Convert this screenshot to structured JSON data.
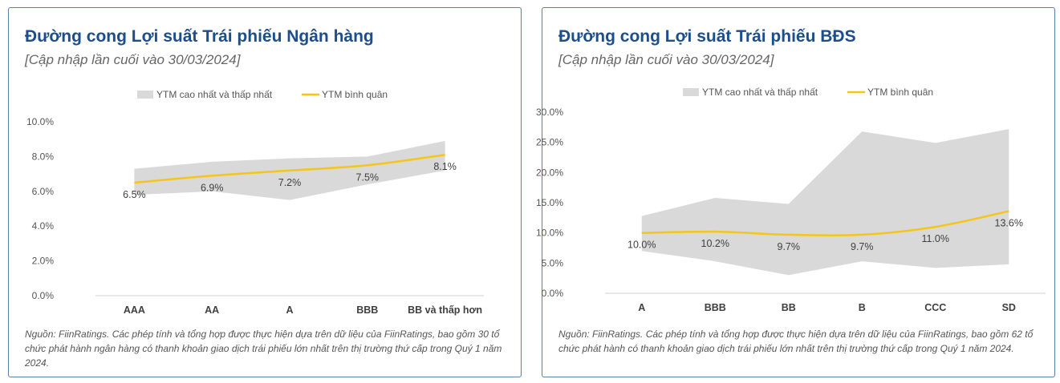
{
  "charts": [
    {
      "title": "Đường cong Lợi suất Trái phiếu Ngân hàng",
      "subtitle": "[Cập nhập lần cuối vào 30/03/2024]",
      "legend": {
        "range_label": "YTM cao nhất và thấp nhất",
        "avg_label": "YTM bình quân"
      },
      "footnote": "Nguồn: FiinRatings. Các phép tính và tổng hợp được thực hiện dựa trên dữ liệu của FiinRatings, bao gồm 30 tổ chức phát hành ngân hàng có thanh khoản giao dịch trái phiếu lớn nhất trên thị trường thứ cấp trong Quý 1 năm 2024."
    },
    {
      "title": "Đường cong Lợi suất Trái phiếu BĐS",
      "subtitle": "[Cập nhập lần cuối vào 30/03/2024]",
      "legend": {
        "range_label": "YTM cao nhất và thấp nhất",
        "avg_label": "YTM bình quân"
      },
      "footnote": "Nguồn: FiinRatings. Các phép tính và tổng hợp được thực hiện dựa trên dữ liệu của FiinRatings, bao gồm 62 tổ chức phát hành có thanh khoản giao dịch trái phiếu lớn nhất trên thị trường thứ cấp trong Quý 1 năm 2024."
    }
  ],
  "chart_data": [
    {
      "type": "area",
      "categories": [
        "AAA",
        "AA",
        "A",
        "BBB",
        "BB và thấp hơn"
      ],
      "series": [
        {
          "name": "YTM cao nhất và thấp nhất",
          "high": [
            7.3,
            7.7,
            7.9,
            8.0,
            8.9
          ],
          "low": [
            5.8,
            6.0,
            5.5,
            6.4,
            7.2
          ]
        },
        {
          "name": "YTM bình quân",
          "values": [
            6.5,
            6.9,
            7.2,
            7.5,
            8.1
          ]
        }
      ],
      "data_labels": [
        "6.5%",
        "6.9%",
        "7.2%",
        "7.5%",
        "8.1%"
      ],
      "y_ticks": [
        "0.0%",
        "2.0%",
        "4.0%",
        "6.0%",
        "8.0%",
        "10.0%"
      ],
      "ylim": [
        0,
        10
      ],
      "legend_position": "top",
      "colors": {
        "range": "#d9d9d9",
        "line": "#f5c518"
      }
    },
    {
      "type": "area",
      "categories": [
        "A",
        "BBB",
        "BB",
        "B",
        "CCC",
        "SD"
      ],
      "series": [
        {
          "name": "YTM cao nhất và thấp nhất",
          "high": [
            12.8,
            15.8,
            14.8,
            26.8,
            24.9,
            27.2
          ],
          "low": [
            7.0,
            5.3,
            3.0,
            5.3,
            4.2,
            4.8
          ]
        },
        {
          "name": "YTM bình quân",
          "values": [
            10.0,
            10.2,
            9.7,
            9.7,
            11.0,
            13.6
          ]
        }
      ],
      "data_labels": [
        "10.0%",
        "10.2%",
        "9.7%",
        "9.7%",
        "11.0%",
        "13.6%"
      ],
      "y_ticks": [
        "0.0%",
        "5.0%",
        "10.0%",
        "15.0%",
        "20.0%",
        "25.0%",
        "30.0%"
      ],
      "ylim": [
        0,
        30
      ],
      "legend_position": "top",
      "colors": {
        "range": "#d9d9d9",
        "line": "#f5c518"
      }
    }
  ]
}
